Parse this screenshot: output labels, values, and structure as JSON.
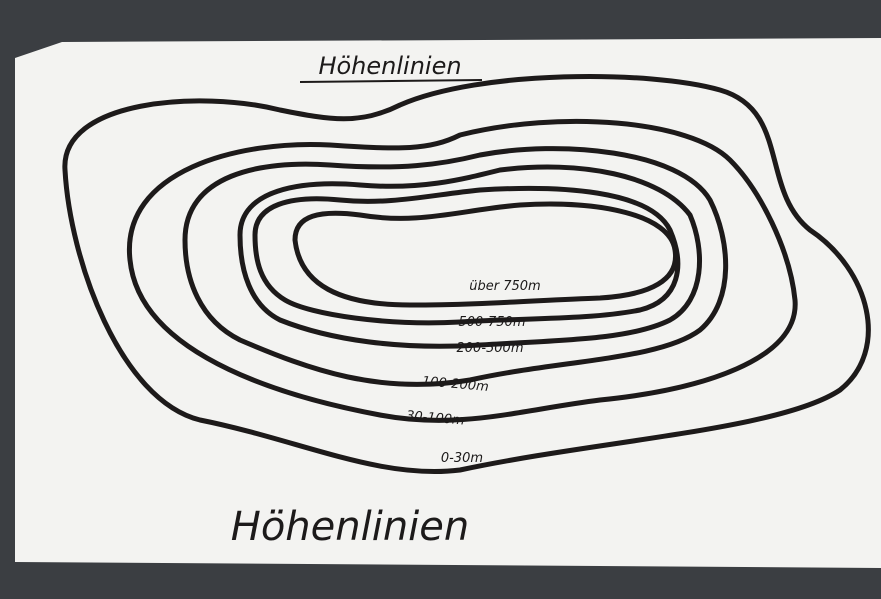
{
  "title": "Höhenlinien",
  "caption": "Höhenlinien",
  "contours": [
    {
      "label": "über 750m"
    },
    {
      "label": "500-750m"
    },
    {
      "label": "200-500m"
    },
    {
      "label": "100-200m"
    },
    {
      "label": "30-100m"
    },
    {
      "label": "0-30m"
    }
  ]
}
